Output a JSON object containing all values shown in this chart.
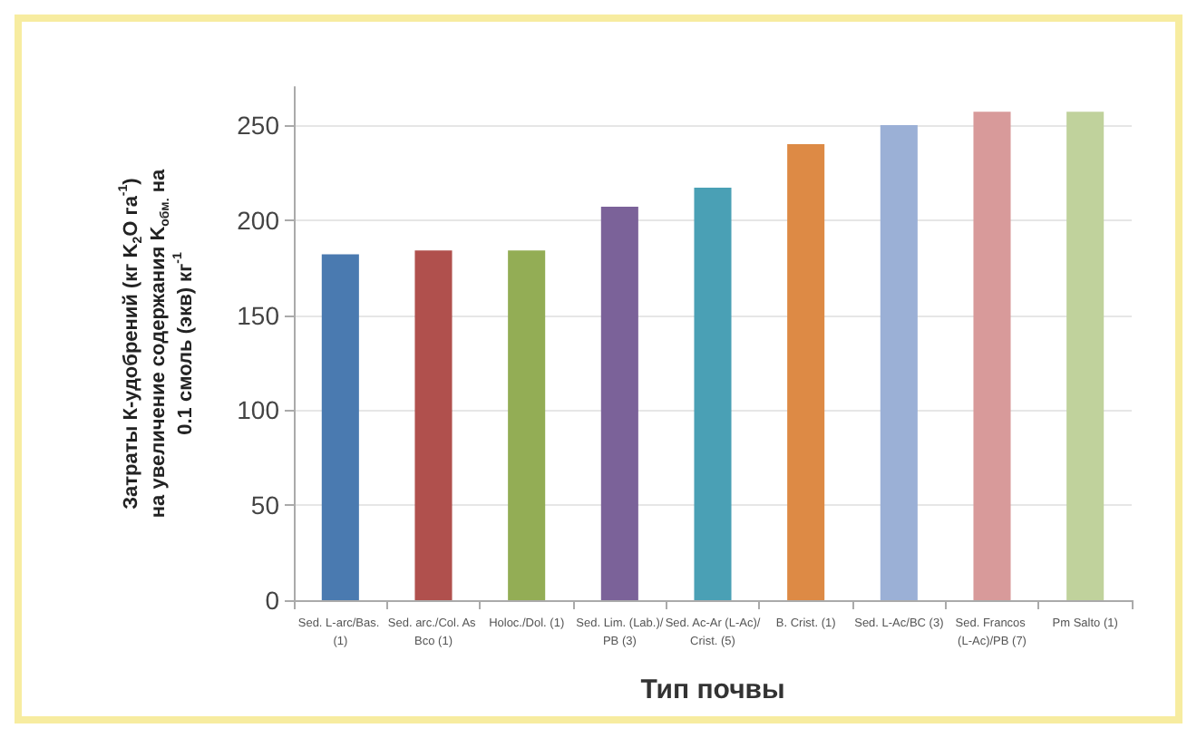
{
  "chart_data": {
    "type": "bar",
    "xlabel": "Тип почвы",
    "ylabel": "Затраты К-удобрений (кг K$_{2}$O га$^{-1}$) на увеличение содержания K$_{обм.}$ на 0.1 смоль (экв) кг$^{-1}$",
    "categories": [
      "Sed. L-arc/Bas. (1)",
      "Sed. arc./Col. As Bco (1)",
      "Holoc./Dol. (1)",
      "Sed. Lim. (Lab.)/PB (3)",
      "Sed. Ac-Ar (L-Ac)/Crist. (5)",
      "B. Crist. (1)",
      "Sed. L-Ac/BC (3)",
      "Sed. Francos (L-Ac)/PB (7)",
      "Pm Salto (1)"
    ],
    "values": [
      182,
      184,
      184,
      207,
      217,
      240,
      250,
      257,
      257
    ],
    "colors": [
      "#4a7ab0",
      "#b0504d",
      "#93ad55",
      "#7b6299",
      "#4aa0b5",
      "#dd8a45",
      "#9bb0d6",
      "#d89a9a",
      "#c0d29c"
    ],
    "ylim": [
      0,
      270
    ],
    "yticks": [
      0,
      50,
      100,
      150,
      200,
      250
    ],
    "grid": "y"
  }
}
